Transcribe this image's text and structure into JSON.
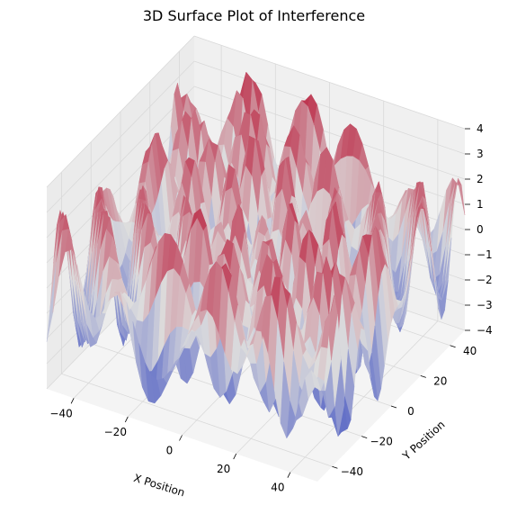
{
  "chart_data": {
    "type": "surface3d",
    "title": "3D Surface Plot of Interference",
    "xlabel": "X Position",
    "ylabel": "Y Position",
    "zlabel": "",
    "xlim": [
      -50,
      50
    ],
    "ylim": [
      -50,
      50
    ],
    "zlim": [
      -4,
      4
    ],
    "x_ticks": [
      -40,
      -20,
      0,
      20,
      40
    ],
    "y_ticks": [
      -40,
      -20,
      0,
      20,
      40
    ],
    "z_ticks": [
      -4,
      -3,
      -2,
      -1,
      0,
      1,
      2,
      3,
      4
    ],
    "tick_labels": {
      "x": [
        "−40",
        "−20",
        "0",
        "20",
        "40"
      ],
      "y": [
        "−40",
        "−20",
        "0",
        "20",
        "40"
      ],
      "z": [
        "−4",
        "−3",
        "−2",
        "−1",
        "0",
        "1",
        "2",
        "3",
        "4"
      ]
    },
    "colormap": "coolwarm",
    "colormap_low": "#3b4cc0",
    "colormap_mid": "#dddddd",
    "colormap_high": "#b40426",
    "grid": true,
    "pane_color": "#f2f2f2",
    "grid_color": "#d9d9d9"
  }
}
